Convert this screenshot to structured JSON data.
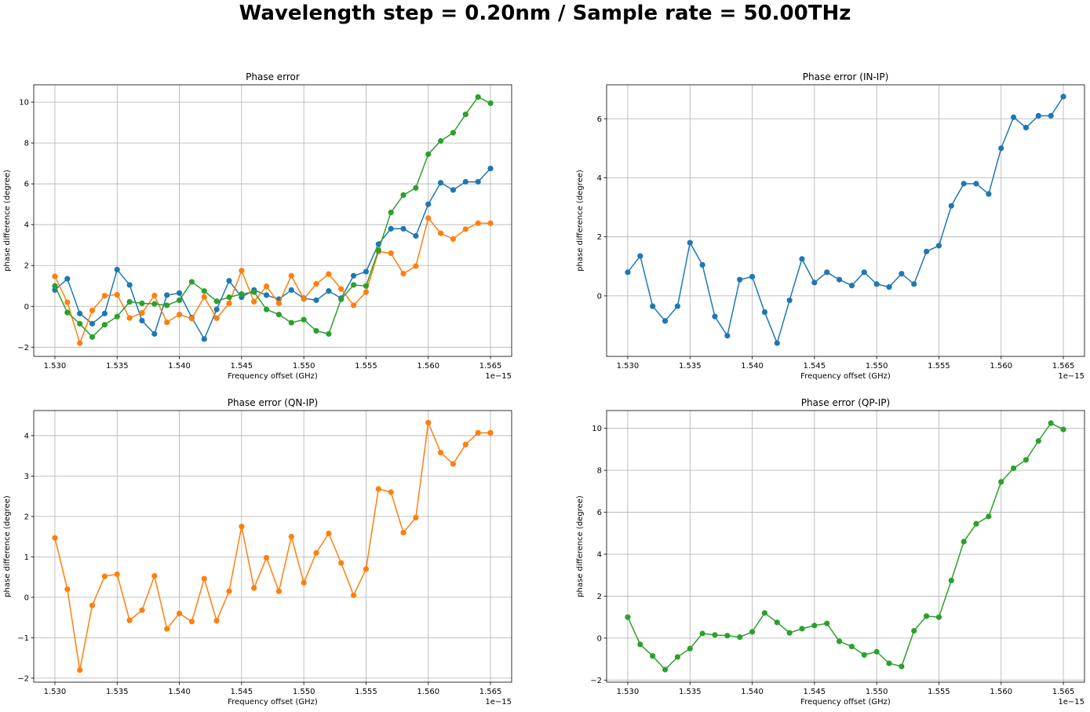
{
  "figure": {
    "suptitle": "Wavelength step = 0.20nm / Sample rate = 50.00THz"
  },
  "colors": {
    "IN-IP": "#1f77b4",
    "QN-IP": "#ff7f0e",
    "QP-IP": "#2ca02c",
    "grid": "#b0b0b0",
    "axes": "#000000"
  },
  "chart_data": [
    {
      "type": "line",
      "title": "Phase error",
      "xlabel": "Frequency offset (GHz)",
      "ylabel": "phase difference (degree)",
      "x_offset_text": "1e−15",
      "xlim": [
        1.5283,
        1.5667
      ],
      "ylim": [
        -2.45,
        10.85
      ],
      "xticks": [
        1.53,
        1.535,
        1.54,
        1.545,
        1.55,
        1.555,
        1.56,
        1.565
      ],
      "xtick_labels": [
        "1.530",
        "1.535",
        "1.540",
        "1.545",
        "1.550",
        "1.555",
        "1.560",
        "1.565"
      ],
      "yticks": [
        -2,
        0,
        2,
        4,
        6,
        8,
        10
      ],
      "ytick_labels": [
        "−2",
        "0",
        "2",
        "4",
        "6",
        "8",
        "10"
      ],
      "grid": true,
      "x": [
        1.53,
        1.531,
        1.532,
        1.533,
        1.534,
        1.535,
        1.536,
        1.537,
        1.538,
        1.539,
        1.54,
        1.541,
        1.542,
        1.543,
        1.544,
        1.545,
        1.546,
        1.547,
        1.548,
        1.549,
        1.55,
        1.551,
        1.552,
        1.553,
        1.554,
        1.555,
        1.556,
        1.557,
        1.558,
        1.559,
        1.56,
        1.561,
        1.562,
        1.563,
        1.564,
        1.565
      ],
      "series": [
        {
          "key": "IN-IP",
          "values": [
            0.8,
            1.35,
            -0.35,
            -0.85,
            -0.35,
            1.8,
            1.05,
            -0.7,
            -1.35,
            0.55,
            0.65,
            -0.55,
            -1.6,
            -0.15,
            1.25,
            0.45,
            0.8,
            0.55,
            0.35,
            0.8,
            0.4,
            0.3,
            0.75,
            0.4,
            1.5,
            1.7,
            3.05,
            3.8,
            3.8,
            3.45,
            5.0,
            6.05,
            5.7,
            6.1,
            6.1,
            6.75
          ]
        },
        {
          "key": "QN-IP",
          "values": [
            1.47,
            0.2,
            -1.8,
            -0.2,
            0.52,
            0.57,
            -0.57,
            -0.32,
            0.53,
            -0.78,
            -0.4,
            -0.6,
            0.46,
            -0.58,
            0.15,
            1.75,
            0.23,
            0.98,
            0.15,
            1.5,
            0.36,
            1.1,
            1.58,
            0.85,
            0.05,
            0.7,
            2.68,
            2.6,
            1.6,
            1.97,
            4.32,
            3.58,
            3.3,
            3.78,
            4.07,
            4.07
          ]
        },
        {
          "key": "QP-IP",
          "values": [
            1.0,
            -0.3,
            -0.85,
            -1.5,
            -0.9,
            -0.5,
            0.22,
            0.15,
            0.12,
            0.05,
            0.3,
            1.2,
            0.75,
            0.25,
            0.45,
            0.6,
            0.7,
            -0.15,
            -0.4,
            -0.8,
            -0.65,
            -1.2,
            -1.35,
            0.35,
            1.05,
            1.0,
            2.75,
            4.6,
            5.45,
            5.8,
            7.45,
            8.1,
            8.5,
            9.4,
            10.25,
            9.95
          ]
        }
      ]
    },
    {
      "type": "line",
      "title": "Phase error (IN-IP)",
      "xlabel": "Frequency offset (GHz)",
      "ylabel": "phase difference (degree)",
      "x_offset_text": "1e−15",
      "xlim": [
        1.5283,
        1.5667
      ],
      "ylim": [
        -2.05,
        7.15
      ],
      "xticks": [
        1.53,
        1.535,
        1.54,
        1.545,
        1.55,
        1.555,
        1.56,
        1.565
      ],
      "xtick_labels": [
        "1.530",
        "1.535",
        "1.540",
        "1.545",
        "1.550",
        "1.555",
        "1.560",
        "1.565"
      ],
      "yticks": [
        0,
        2,
        4,
        6
      ],
      "ytick_labels": [
        "0",
        "2",
        "4",
        "6"
      ],
      "grid": true,
      "x": [
        1.53,
        1.531,
        1.532,
        1.533,
        1.534,
        1.535,
        1.536,
        1.537,
        1.538,
        1.539,
        1.54,
        1.541,
        1.542,
        1.543,
        1.544,
        1.545,
        1.546,
        1.547,
        1.548,
        1.549,
        1.55,
        1.551,
        1.552,
        1.553,
        1.554,
        1.555,
        1.556,
        1.557,
        1.558,
        1.559,
        1.56,
        1.561,
        1.562,
        1.563,
        1.564,
        1.565
      ],
      "series": [
        {
          "key": "IN-IP",
          "values": [
            0.8,
            1.35,
            -0.35,
            -0.85,
            -0.35,
            1.8,
            1.05,
            -0.7,
            -1.35,
            0.55,
            0.65,
            -0.55,
            -1.6,
            -0.15,
            1.25,
            0.45,
            0.8,
            0.55,
            0.35,
            0.8,
            0.4,
            0.3,
            0.75,
            0.4,
            1.5,
            1.7,
            3.05,
            3.8,
            3.8,
            3.45,
            5.0,
            6.05,
            5.7,
            6.1,
            6.1,
            6.75
          ]
        }
      ]
    },
    {
      "type": "line",
      "title": "Phase error (QN-IP)",
      "xlabel": "Frequency offset (GHz)",
      "ylabel": "phase difference (degree)",
      "x_offset_text": "1e−15",
      "xlim": [
        1.5283,
        1.5667
      ],
      "ylim": [
        -2.1,
        4.62
      ],
      "xticks": [
        1.53,
        1.535,
        1.54,
        1.545,
        1.55,
        1.555,
        1.56,
        1.565
      ],
      "xtick_labels": [
        "1.530",
        "1.535",
        "1.540",
        "1.545",
        "1.550",
        "1.555",
        "1.560",
        "1.565"
      ],
      "yticks": [
        -2,
        -1,
        0,
        1,
        2,
        3,
        4
      ],
      "ytick_labels": [
        "−2",
        "−1",
        "0",
        "1",
        "2",
        "3",
        "4"
      ],
      "grid": true,
      "x": [
        1.53,
        1.531,
        1.532,
        1.533,
        1.534,
        1.535,
        1.536,
        1.537,
        1.538,
        1.539,
        1.54,
        1.541,
        1.542,
        1.543,
        1.544,
        1.545,
        1.546,
        1.547,
        1.548,
        1.549,
        1.55,
        1.551,
        1.552,
        1.553,
        1.554,
        1.555,
        1.556,
        1.557,
        1.558,
        1.559,
        1.56,
        1.561,
        1.562,
        1.563,
        1.564,
        1.565
      ],
      "series": [
        {
          "key": "QN-IP",
          "values": [
            1.47,
            0.2,
            -1.8,
            -0.2,
            0.52,
            0.57,
            -0.57,
            -0.32,
            0.53,
            -0.78,
            -0.4,
            -0.6,
            0.46,
            -0.58,
            0.15,
            1.75,
            0.23,
            0.98,
            0.15,
            1.5,
            0.36,
            1.1,
            1.58,
            0.85,
            0.05,
            0.7,
            2.68,
            2.6,
            1.6,
            1.97,
            4.32,
            3.58,
            3.3,
            3.78,
            4.07,
            4.07
          ]
        }
      ]
    },
    {
      "type": "line",
      "title": "Phase error (QP-IP)",
      "xlabel": "Frequency offset (GHz)",
      "ylabel": "phase difference (degree)",
      "x_offset_text": "1e−15",
      "xlim": [
        1.5283,
        1.5667
      ],
      "ylim": [
        -2.1,
        10.85
      ],
      "xticks": [
        1.53,
        1.535,
        1.54,
        1.545,
        1.55,
        1.555,
        1.56,
        1.565
      ],
      "xtick_labels": [
        "1.530",
        "1.535",
        "1.540",
        "1.545",
        "1.550",
        "1.555",
        "1.560",
        "1.565"
      ],
      "yticks": [
        -2,
        0,
        2,
        4,
        6,
        8,
        10
      ],
      "ytick_labels": [
        "−2",
        "0",
        "2",
        "4",
        "6",
        "8",
        "10"
      ],
      "grid": true,
      "x": [
        1.53,
        1.531,
        1.532,
        1.533,
        1.534,
        1.535,
        1.536,
        1.537,
        1.538,
        1.539,
        1.54,
        1.541,
        1.542,
        1.543,
        1.544,
        1.545,
        1.546,
        1.547,
        1.548,
        1.549,
        1.55,
        1.551,
        1.552,
        1.553,
        1.554,
        1.555,
        1.556,
        1.557,
        1.558,
        1.559,
        1.56,
        1.561,
        1.562,
        1.563,
        1.564,
        1.565
      ],
      "series": [
        {
          "key": "QP-IP",
          "values": [
            1.0,
            -0.3,
            -0.85,
            -1.5,
            -0.9,
            -0.5,
            0.22,
            0.15,
            0.12,
            0.05,
            0.3,
            1.2,
            0.75,
            0.25,
            0.45,
            0.6,
            0.7,
            -0.15,
            -0.4,
            -0.8,
            -0.65,
            -1.2,
            -1.35,
            0.35,
            1.05,
            1.0,
            2.75,
            4.6,
            5.45,
            5.8,
            7.45,
            8.1,
            8.5,
            9.4,
            10.25,
            9.95
          ]
        }
      ]
    }
  ]
}
